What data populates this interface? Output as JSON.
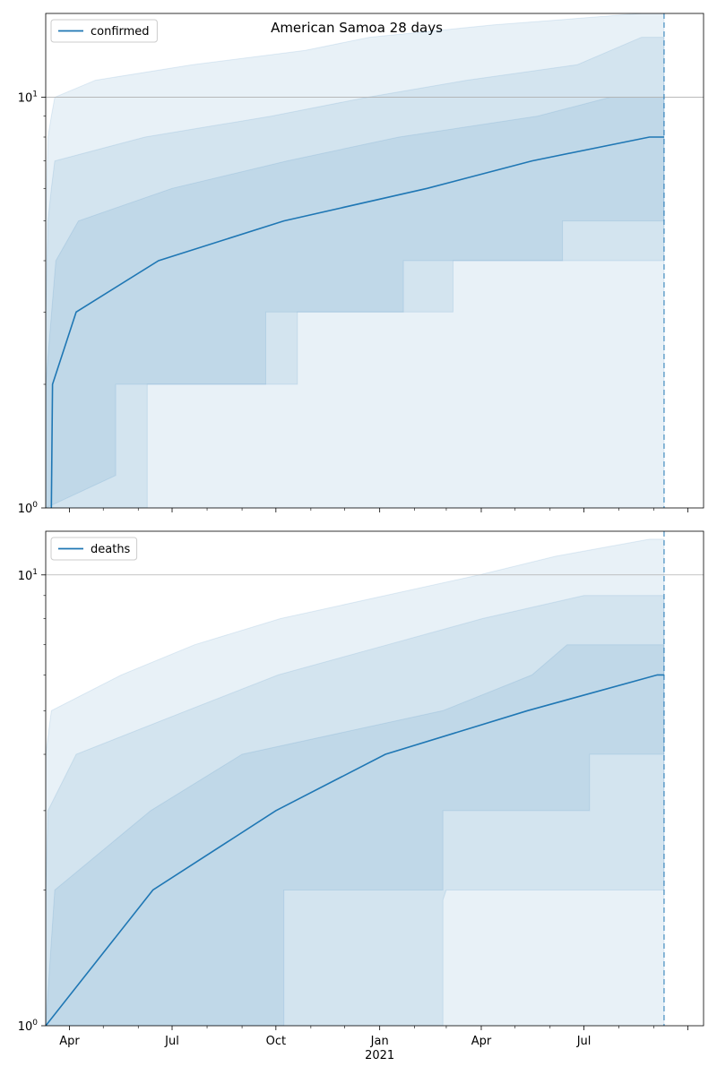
{
  "figure": {
    "suptitle": "American Samoa 28 days"
  },
  "colors": {
    "line": "#1f77b4",
    "band": "#1f77b4",
    "grid": "#b0b0b0",
    "vline": "#1f77b4"
  },
  "x_axis": {
    "ticks": [
      {
        "date": "2020-04-01",
        "label": "Apr"
      },
      {
        "date": "2020-07-01",
        "label": "Jul"
      },
      {
        "date": "2020-10-01",
        "label": "Oct"
      },
      {
        "date": "2021-01-01",
        "label": "Jan"
      },
      {
        "date": "2021-04-01",
        "label": "Apr"
      },
      {
        "date": "2021-07-01",
        "label": "Jul"
      }
    ],
    "year_label": {
      "date": "2021-01-01",
      "label": "2021"
    }
  },
  "chart_data": [
    {
      "type": "line",
      "title": "American Samoa 28 days",
      "xlabel": "",
      "ylabel": "",
      "yscale": "log",
      "xlim": [
        "2020-03-11",
        "2021-10-15"
      ],
      "ylim": [
        1,
        16
      ],
      "yticks": [
        {
          "value": 1,
          "label": "10^0"
        },
        {
          "value": 10,
          "label": "10^1"
        }
      ],
      "grid": "horizontal at decades",
      "legend": {
        "position": "top-left",
        "entries": [
          "confirmed"
        ]
      },
      "forecast_start": "2021-09-10",
      "series": [
        {
          "name": "confirmed",
          "steps": [
            {
              "date": "2020-03-16",
              "value": 1
            },
            {
              "date": "2020-03-17",
              "value": 2
            },
            {
              "date": "2020-04-07",
              "value": 3
            },
            {
              "date": "2020-06-19",
              "value": 4
            },
            {
              "date": "2020-10-08",
              "value": 5
            },
            {
              "date": "2021-02-12",
              "value": 6
            },
            {
              "date": "2021-05-16",
              "value": 7
            },
            {
              "date": "2021-08-28",
              "value": 8
            },
            {
              "date": "2021-09-10",
              "value": 8
            }
          ]
        }
      ],
      "bands": [
        {
          "level": "outer",
          "lower": [
            {
              "date": "2020-03-11",
              "value": 1
            },
            {
              "date": "2021-09-10",
              "value": 1
            }
          ],
          "upper": [
            {
              "date": "2020-03-11",
              "value": 5
            },
            {
              "date": "2020-03-13",
              "value": 8
            },
            {
              "date": "2020-03-16",
              "value": 9
            },
            {
              "date": "2020-03-19",
              "value": 10
            },
            {
              "date": "2020-04-24",
              "value": 11
            },
            {
              "date": "2020-07-19",
              "value": 12
            },
            {
              "date": "2020-10-27",
              "value": 13
            },
            {
              "date": "2020-12-23",
              "value": 14
            },
            {
              "date": "2021-04-12",
              "value": 15
            },
            {
              "date": "2021-08-21",
              "value": 16
            },
            {
              "date": "2021-09-10",
              "value": 16
            }
          ]
        },
        {
          "level": "middle",
          "lower": [
            {
              "date": "2020-03-11",
              "value": 1
            },
            {
              "date": "2020-05-12",
              "value": 1.2
            },
            {
              "date": "2020-05-12",
              "value": 2
            },
            {
              "date": "2020-09-22",
              "value": 2
            },
            {
              "date": "2020-09-22",
              "value": 3
            },
            {
              "date": "2021-01-22",
              "value": 3
            },
            {
              "date": "2021-01-22",
              "value": 4
            },
            {
              "date": "2021-06-12",
              "value": 4
            },
            {
              "date": "2021-06-12",
              "value": 5
            },
            {
              "date": "2021-09-10",
              "value": 5
            }
          ],
          "upper": [
            {
              "date": "2020-03-11",
              "value": 3
            },
            {
              "date": "2020-03-13",
              "value": 5
            },
            {
              "date": "2020-03-16",
              "value": 6
            },
            {
              "date": "2020-03-19",
              "value": 7
            },
            {
              "date": "2020-06-07",
              "value": 8
            },
            {
              "date": "2020-09-27",
              "value": 9
            },
            {
              "date": "2020-12-21",
              "value": 10
            },
            {
              "date": "2021-03-19",
              "value": 11
            },
            {
              "date": "2021-06-25",
              "value": 12
            },
            {
              "date": "2021-08-21",
              "value": 14
            },
            {
              "date": "2021-09-10",
              "value": 14
            }
          ]
        },
        {
          "level": "inner",
          "lower": [
            {
              "date": "2020-03-11",
              "value": 1
            },
            {
              "date": "2020-06-09",
              "value": 1
            },
            {
              "date": "2020-06-09",
              "value": 2
            },
            {
              "date": "2020-10-20",
              "value": 2
            },
            {
              "date": "2020-10-20",
              "value": 3
            },
            {
              "date": "2021-03-07",
              "value": 3
            },
            {
              "date": "2021-03-07",
              "value": 4
            },
            {
              "date": "2021-07-24",
              "value": 4
            },
            {
              "date": "2021-09-10",
              "value": 4
            }
          ],
          "upper": [
            {
              "date": "2020-03-11",
              "value": 2
            },
            {
              "date": "2020-03-20",
              "value": 4
            },
            {
              "date": "2020-04-09",
              "value": 5
            },
            {
              "date": "2020-07-01",
              "value": 6
            },
            {
              "date": "2020-10-11",
              "value": 7
            },
            {
              "date": "2021-01-18",
              "value": 8
            },
            {
              "date": "2021-05-21",
              "value": 9
            },
            {
              "date": "2021-07-24",
              "value": 10
            },
            {
              "date": "2021-09-10",
              "value": 10
            }
          ]
        }
      ]
    },
    {
      "type": "line",
      "title": "",
      "xlabel": "",
      "ylabel": "",
      "yscale": "log",
      "xlim": [
        "2020-03-11",
        "2021-10-15"
      ],
      "ylim": [
        1,
        12.5
      ],
      "yticks": [
        {
          "value": 1,
          "label": "10^0"
        },
        {
          "value": 10,
          "label": "10^1"
        }
      ],
      "grid": "horizontal at decades",
      "legend": {
        "position": "top-left",
        "entries": [
          "deaths"
        ]
      },
      "forecast_start": "2021-09-10",
      "series": [
        {
          "name": "deaths",
          "steps": [
            {
              "date": "2020-03-11",
              "value": 1
            },
            {
              "date": "2020-06-14",
              "value": 2
            },
            {
              "date": "2020-10-01",
              "value": 3
            },
            {
              "date": "2021-01-06",
              "value": 4
            },
            {
              "date": "2021-05-12",
              "value": 5
            },
            {
              "date": "2021-09-04",
              "value": 6
            },
            {
              "date": "2021-09-10",
              "value": 6
            }
          ]
        }
      ],
      "bands": [
        {
          "level": "outer",
          "lower": [
            {
              "date": "2020-03-11",
              "value": 1
            },
            {
              "date": "2021-02-26",
              "value": 1
            },
            {
              "date": "2021-02-26",
              "value": 1.9
            },
            {
              "date": "2021-03-01",
              "value": 2
            },
            {
              "date": "2021-09-10",
              "value": 2
            }
          ],
          "upper": [
            {
              "date": "2020-03-11",
              "value": 4
            },
            {
              "date": "2020-03-16",
              "value": 5
            },
            {
              "date": "2020-05-17",
              "value": 6
            },
            {
              "date": "2020-07-21",
              "value": 7
            },
            {
              "date": "2020-10-05",
              "value": 8
            },
            {
              "date": "2021-01-06",
              "value": 9
            },
            {
              "date": "2021-03-30",
              "value": 10
            },
            {
              "date": "2021-06-06",
              "value": 11
            },
            {
              "date": "2021-08-28",
              "value": 12
            },
            {
              "date": "2021-09-10",
              "value": 12
            }
          ]
        },
        {
          "level": "middle",
          "lower": [
            {
              "date": "2020-03-11",
              "value": 1
            },
            {
              "date": "2020-10-08",
              "value": 1
            },
            {
              "date": "2020-10-08",
              "value": 2
            },
            {
              "date": "2021-02-26",
              "value": 2
            },
            {
              "date": "2021-02-26",
              "value": 3
            },
            {
              "date": "2021-07-06",
              "value": 3
            },
            {
              "date": "2021-07-06",
              "value": 4
            },
            {
              "date": "2021-09-10",
              "value": 4
            }
          ],
          "upper": [
            {
              "date": "2020-03-11",
              "value": 2
            },
            {
              "date": "2020-03-13",
              "value": 3
            },
            {
              "date": "2020-04-07",
              "value": 4
            },
            {
              "date": "2020-07-14",
              "value": 5
            },
            {
              "date": "2020-10-03",
              "value": 6
            },
            {
              "date": "2021-01-08",
              "value": 7
            },
            {
              "date": "2021-04-02",
              "value": 8
            },
            {
              "date": "2021-07-01",
              "value": 9
            },
            {
              "date": "2021-09-10",
              "value": 9
            }
          ]
        },
        {
          "level": "inner",
          "lower": [
            {
              "date": "2020-03-11",
              "value": 1
            },
            {
              "date": "2021-09-10",
              "value": 1
            }
          ],
          "upper": [
            {
              "date": "2020-03-11",
              "value": 1
            },
            {
              "date": "2020-03-19",
              "value": 2
            },
            {
              "date": "2020-06-12",
              "value": 3
            },
            {
              "date": "2020-09-01",
              "value": 4
            },
            {
              "date": "2021-02-26",
              "value": 5
            },
            {
              "date": "2021-05-16",
              "value": 6
            },
            {
              "date": "2021-06-16",
              "value": 7
            },
            {
              "date": "2021-09-10",
              "value": 7
            }
          ]
        }
      ]
    }
  ]
}
